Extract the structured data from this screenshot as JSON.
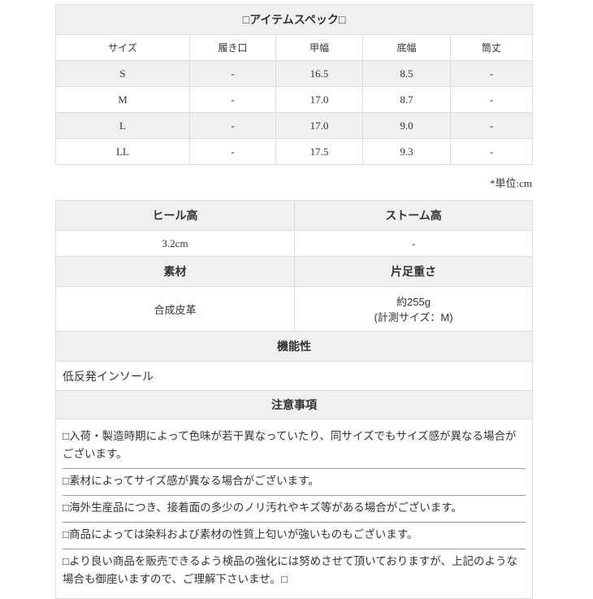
{
  "spec": {
    "title": "□アイテムスペック□",
    "columns": [
      "サイズ",
      "履き口",
      "甲幅",
      "底幅",
      "筒丈"
    ],
    "rows": [
      [
        "S",
        "-",
        "16.5",
        "8.5",
        "-"
      ],
      [
        "M",
        "-",
        "17.0",
        "8.7",
        "-"
      ],
      [
        "L",
        "-",
        "17.0",
        "9.0",
        "-"
      ],
      [
        "LL",
        "-",
        "17.5",
        "9.3",
        "-"
      ]
    ],
    "unit": "*単位:cm"
  },
  "details": {
    "heel_label": "ヒール高",
    "heel_value": "3.2cm",
    "storm_label": "ストーム高",
    "storm_value": "-",
    "material_label": "素材",
    "material_value": "合成皮革",
    "weight_label": "片足重さ",
    "weight_value": "約255g",
    "weight_note": "(計測サイズ：M)",
    "function_label": "機能性",
    "function_value": "低反発インソール",
    "notes_label": "注意事項",
    "notes": [
      "□入荷・製造時期によって色味が若干異なっていたり、同サイズでもサイズ感が異なる場合がございます。",
      "□素材によってサイズ感が異なる場合がございます。",
      "□海外生産品につき、接着面の多少のノリ汚れやキズ等がある場合がございます。",
      "□商品によっては染料および素材の性質上匂いが強いものもございます。",
      "□より良い商品を販売できるよう検品の強化には努めさせて頂いておりますが、上記のような場合も御座いますので、ご理解下さいませ。□"
    ]
  }
}
